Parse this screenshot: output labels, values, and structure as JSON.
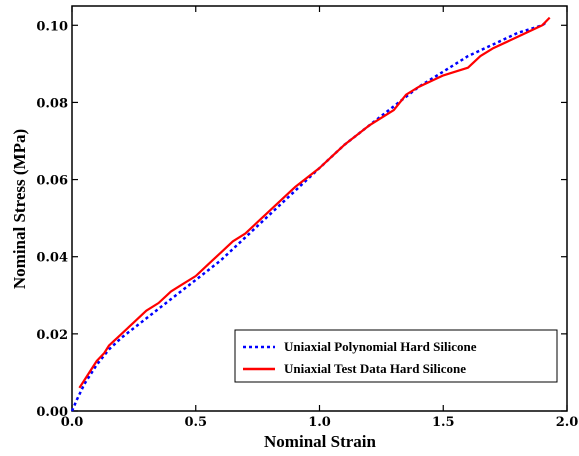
{
  "chart_data": {
    "type": "line",
    "title": "",
    "xlabel": "Nominal Strain",
    "ylabel": "Nominal Stress (MPa)",
    "xlim": [
      0.0,
      2.0
    ],
    "ylim": [
      0.0,
      0.105
    ],
    "x_ticks": [
      0.0,
      0.5,
      1.0,
      1.5,
      2.0
    ],
    "x_tick_labels": [
      "0.0",
      "0.5",
      "1.0",
      "1.5",
      "2.0"
    ],
    "y_ticks": [
      0.0,
      0.02,
      0.04,
      0.06,
      0.08,
      0.1
    ],
    "y_tick_labels": [
      "0.00",
      "0.02",
      "0.04",
      "0.06",
      "0.08",
      "0.10"
    ],
    "grid": false,
    "legend_position": "bottom-right",
    "series": [
      {
        "name": "Uniaxial Polynomial Hard Silicone",
        "color": "#0000ff",
        "style": "dotted",
        "x": [
          0.0,
          0.02,
          0.05,
          0.1,
          0.15,
          0.2,
          0.3,
          0.4,
          0.5,
          0.6,
          0.7,
          0.8,
          0.9,
          1.0,
          1.1,
          1.2,
          1.3,
          1.4,
          1.5,
          1.6,
          1.7,
          1.8,
          1.9,
          1.92
        ],
        "y": [
          0.0,
          0.003,
          0.007,
          0.012,
          0.016,
          0.019,
          0.024,
          0.029,
          0.034,
          0.039,
          0.045,
          0.051,
          0.057,
          0.063,
          0.069,
          0.074,
          0.079,
          0.084,
          0.088,
          0.092,
          0.095,
          0.098,
          0.1,
          0.101
        ]
      },
      {
        "name": "Uniaxial Test Data Hard Silicone",
        "color": "#ff0000",
        "style": "solid",
        "x": [
          0.03,
          0.05,
          0.08,
          0.1,
          0.13,
          0.15,
          0.2,
          0.25,
          0.3,
          0.35,
          0.4,
          0.45,
          0.5,
          0.55,
          0.6,
          0.65,
          0.7,
          0.8,
          0.9,
          1.0,
          1.05,
          1.1,
          1.2,
          1.3,
          1.35,
          1.4,
          1.5,
          1.55,
          1.6,
          1.65,
          1.7,
          1.8,
          1.9,
          1.93
        ],
        "y": [
          0.006,
          0.008,
          0.011,
          0.013,
          0.015,
          0.017,
          0.02,
          0.023,
          0.026,
          0.028,
          0.031,
          0.033,
          0.035,
          0.038,
          0.041,
          0.044,
          0.046,
          0.052,
          0.058,
          0.063,
          0.066,
          0.069,
          0.074,
          0.078,
          0.082,
          0.084,
          0.087,
          0.088,
          0.089,
          0.092,
          0.094,
          0.097,
          0.1,
          0.102
        ]
      }
    ]
  }
}
